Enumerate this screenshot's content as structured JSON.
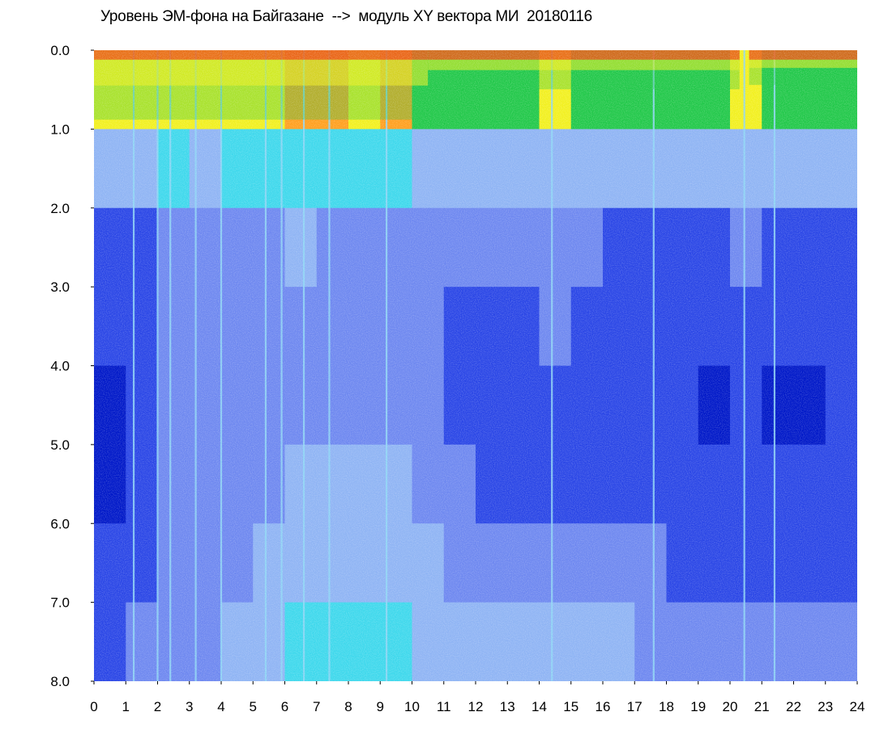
{
  "chart_data": {
    "type": "heatmap",
    "title": "Уровень ЭМ-фона на Байгазане  -->  модуль XY вектора МИ  20180116",
    "xlabel": "",
    "ylabel": "",
    "xlim": [
      0,
      24
    ],
    "ylim": [
      0,
      8
    ],
    "y_inverted": true,
    "x_ticks": [
      "0",
      "1",
      "2",
      "3",
      "4",
      "5",
      "6",
      "7",
      "8",
      "9",
      "10",
      "11",
      "12",
      "13",
      "14",
      "15",
      "16",
      "17",
      "18",
      "19",
      "20",
      "21",
      "22",
      "23",
      "24"
    ],
    "y_ticks": [
      "0.0",
      "1.0",
      "2.0",
      "3.0",
      "4.0",
      "5.0",
      "6.0",
      "7.0",
      "8.0"
    ],
    "grid": false,
    "colorscale": [
      "#0018c8",
      "#2a46e6",
      "#6e88f0",
      "#8fb4f4",
      "#3fd8ec",
      "#22c84a",
      "#f2f020",
      "#ffa020",
      "#f82010"
    ],
    "vertical_streaks_hours": [
      1.25,
      2.0,
      2.4,
      3.2,
      4.0,
      5.4,
      5.9,
      6.6,
      7.4,
      9.2,
      14.4,
      17.6,
      20.45,
      21.4
    ],
    "high_level_band": {
      "description_hours": [
        [
          0,
          10.5
        ],
        [
          10.5,
          20.3
        ],
        [
          20.6,
          24
        ]
      ],
      "depth": [
        1.6,
        0.9,
        0.8
      ]
    },
    "cells": {
      "x_bins": 24,
      "y_bins": 8,
      "values": [
        [
          0.7,
          0.72,
          0.74,
          0.72,
          0.78,
          0.76,
          0.82,
          0.84,
          0.76,
          0.85,
          0.62,
          0.58,
          0.58,
          0.6,
          0.72,
          0.62,
          0.6,
          0.62,
          0.64,
          0.62,
          0.7,
          0.6,
          0.6,
          0.58
        ],
        [
          0.4,
          0.4,
          0.45,
          0.42,
          0.46,
          0.44,
          0.52,
          0.5,
          0.44,
          0.46,
          0.4,
          0.34,
          0.34,
          0.36,
          0.4,
          0.36,
          0.36,
          0.38,
          0.4,
          0.4,
          0.4,
          0.36,
          0.38,
          0.38
        ],
        [
          0.14,
          0.18,
          0.28,
          0.28,
          0.3,
          0.3,
          0.32,
          0.3,
          0.3,
          0.3,
          0.28,
          0.22,
          0.22,
          0.22,
          0.24,
          0.2,
          0.18,
          0.16,
          0.14,
          0.14,
          0.2,
          0.14,
          0.16,
          0.18
        ],
        [
          0.1,
          0.12,
          0.24,
          0.24,
          0.26,
          0.28,
          0.3,
          0.28,
          0.3,
          0.28,
          0.24,
          0.16,
          0.18,
          0.18,
          0.2,
          0.18,
          0.16,
          0.14,
          0.1,
          0.1,
          0.16,
          0.1,
          0.1,
          0.12
        ],
        [
          0.06,
          0.08,
          0.22,
          0.24,
          0.26,
          0.28,
          0.3,
          0.3,
          0.3,
          0.3,
          0.26,
          0.18,
          0.14,
          0.14,
          0.16,
          0.16,
          0.14,
          0.12,
          0.08,
          0.06,
          0.12,
          0.06,
          0.06,
          0.08
        ],
        [
          0.06,
          0.08,
          0.22,
          0.24,
          0.26,
          0.3,
          0.32,
          0.32,
          0.34,
          0.32,
          0.28,
          0.22,
          0.18,
          0.16,
          0.16,
          0.16,
          0.16,
          0.12,
          0.1,
          0.08,
          0.12,
          0.08,
          0.08,
          0.08
        ],
        [
          0.1,
          0.12,
          0.24,
          0.26,
          0.3,
          0.34,
          0.36,
          0.38,
          0.38,
          0.36,
          0.32,
          0.3,
          0.28,
          0.26,
          0.26,
          0.28,
          0.26,
          0.2,
          0.16,
          0.14,
          0.18,
          0.14,
          0.14,
          0.14
        ],
        [
          0.16,
          0.2,
          0.28,
          0.3,
          0.32,
          0.4,
          0.44,
          0.46,
          0.46,
          0.44,
          0.38,
          0.36,
          0.34,
          0.34,
          0.34,
          0.34,
          0.34,
          0.28,
          0.24,
          0.22,
          0.24,
          0.22,
          0.22,
          0.22
        ]
      ]
    }
  }
}
